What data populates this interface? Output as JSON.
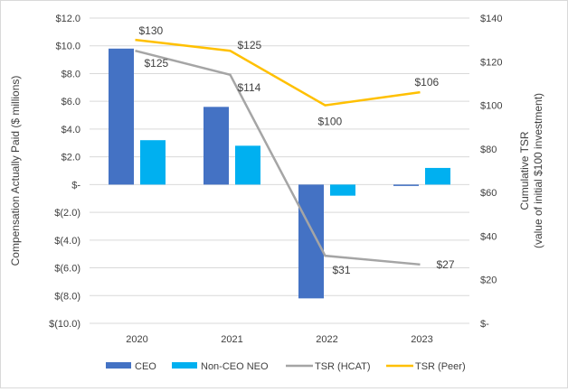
{
  "chart_data": {
    "type": "bar+line",
    "categories": [
      "2020",
      "2021",
      "2022",
      "2023"
    ],
    "left_axis": {
      "label": "Compensation Actually Paid ($ millions)",
      "range": [
        -10,
        12
      ],
      "ticks": [
        12,
        10,
        8,
        6,
        4,
        2,
        0,
        -2,
        -4,
        -6,
        -8,
        -10
      ],
      "tick_labels": [
        "$12.0",
        "$10.0",
        "$8.0",
        "$6.0",
        "$4.0",
        "$2.0",
        "$-",
        "$(2.0)",
        "$(4.0)",
        "$(6.0)",
        "$(8.0)",
        "$(10.0)"
      ]
    },
    "right_axis": {
      "label_line1": "Cumulative TSR",
      "label_line2": "(value of initial $100 investment)",
      "range": [
        0,
        140
      ],
      "ticks": [
        140,
        120,
        100,
        80,
        60,
        40,
        20,
        0
      ],
      "tick_labels": [
        "$140",
        "$120",
        "$100",
        "$80",
        "$60",
        "$40",
        "$20",
        "$-"
      ]
    },
    "bar_series": [
      {
        "name": "CEO",
        "color": "#4472C4",
        "values": [
          9.8,
          5.6,
          -8.2,
          -0.1
        ]
      },
      {
        "name": "Non-CEO NEO",
        "color": "#00B0F0",
        "values": [
          3.2,
          2.8,
          -0.8,
          1.2
        ]
      }
    ],
    "line_series": [
      {
        "name": "TSR (HCAT)",
        "color": "#A5A5A5",
        "values": [
          125,
          114,
          31,
          27
        ],
        "labels": [
          "$125",
          "$114",
          "$31",
          "$27"
        ]
      },
      {
        "name": "TSR (Peer)",
        "color": "#FFC000",
        "values": [
          130,
          125,
          100,
          106
        ],
        "labels": [
          "$130",
          "$125",
          "$100",
          "$106"
        ]
      }
    ],
    "grid": true,
    "legend": "bottom"
  }
}
